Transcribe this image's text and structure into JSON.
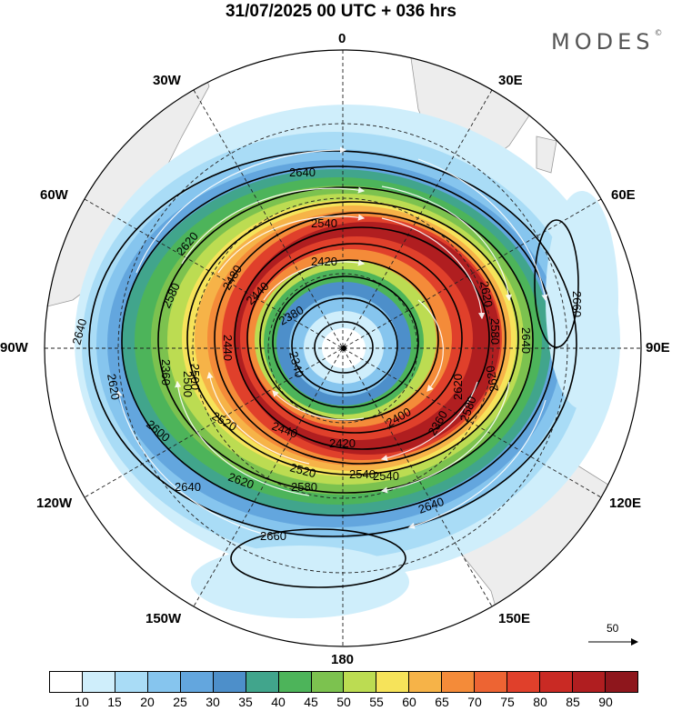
{
  "header": {
    "title": "31/07/2025  00 UTC  + 036 hrs",
    "brand": "MODES",
    "brand_mark": "©"
  },
  "map": {
    "projection": "south-polar-stereographic",
    "lon_labels": [
      "0",
      "30E",
      "60E",
      "90E",
      "120E",
      "150E",
      "180",
      "150W",
      "120W",
      "90W",
      "60W",
      "30W"
    ],
    "contour_labels": [
      "2640",
      "2540",
      "2620",
      "2660",
      "2640",
      "2620",
      "2580",
      "2540",
      "2640",
      "2660",
      "2640",
      "2620",
      "2620",
      "2600",
      "2580",
      "2620",
      "2640",
      "2620",
      "2580",
      "2500",
      "2480",
      "2440",
      "2420",
      "2380",
      "2360",
      "2340",
      "2440",
      "2520",
      "2400",
      "2360",
      "2420",
      "2440",
      "2500",
      "2580",
      "2520",
      "2540"
    ]
  },
  "reference_vector": {
    "value": "50"
  },
  "colorbar": {
    "colors": [
      "#ffffff",
      "#cfeefb",
      "#a9dcf6",
      "#86c5ee",
      "#63a6de",
      "#4d8fca",
      "#41a58c",
      "#4db45a",
      "#7cc24f",
      "#bcdc52",
      "#f6e35a",
      "#f6b348",
      "#f48b39",
      "#ed6433",
      "#e0402b",
      "#c92a24",
      "#b01e20",
      "#8e161c"
    ],
    "tick_labels": [
      "10",
      "15",
      "20",
      "25",
      "30",
      "35",
      "40",
      "45",
      "50",
      "55",
      "60",
      "65",
      "70",
      "75",
      "80",
      "85",
      "90"
    ]
  }
}
